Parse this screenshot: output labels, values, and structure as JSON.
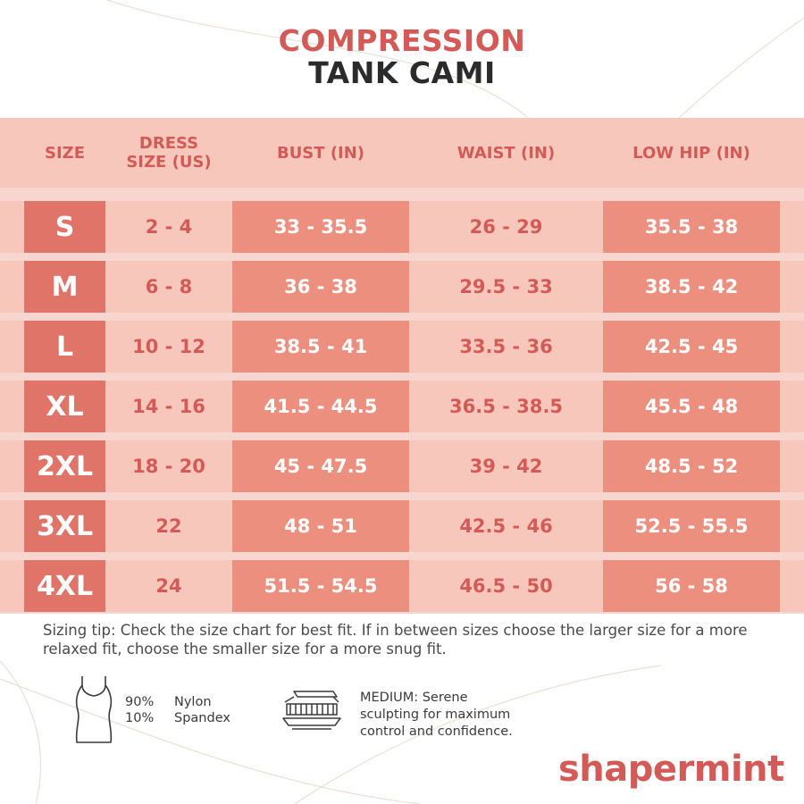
{
  "title": {
    "line1": "COMPRESSION",
    "line2": "TANK CAMI"
  },
  "table": {
    "headers": [
      "SIZE",
      "DRESS SIZE (US)",
      "BUST (IN)",
      "WAIST (IN)",
      "LOW HIP (IN)"
    ],
    "header_lines": {
      "size": "SIZE",
      "dress_1": "DRESS",
      "dress_2": "SIZE (US)",
      "bust": "BUST (IN)",
      "waist": "WAIST (IN)",
      "hip": "LOW HIP (IN)"
    },
    "rows": [
      {
        "size": "S",
        "dress": "2 - 4",
        "bust": "33 - 35.5",
        "waist": "26 - 29",
        "hip": "35.5 - 38"
      },
      {
        "size": "M",
        "dress": "6 - 8",
        "bust": "36 - 38",
        "waist": "29.5 - 33",
        "hip": "38.5 - 42"
      },
      {
        "size": "L",
        "dress": "10 - 12",
        "bust": "38.5 - 41",
        "waist": "33.5 - 36",
        "hip": "42.5 - 45"
      },
      {
        "size": "XL",
        "dress": "14 - 16",
        "bust": "41.5 - 44.5",
        "waist": "36.5 - 38.5",
        "hip": "45.5 - 48"
      },
      {
        "size": "2XL",
        "dress": "18 - 20",
        "bust": "45 - 47.5",
        "waist": "39 - 42",
        "hip": "48.5 - 52"
      },
      {
        "size": "3XL",
        "dress": "22",
        "bust": "48 - 51",
        "waist": "42.5 - 46",
        "hip": "52.5 - 55.5"
      },
      {
        "size": "4XL",
        "dress": "24",
        "bust": "51.5 - 54.5",
        "waist": "46.5 - 50",
        "hip": "56 - 58"
      }
    ]
  },
  "tip": {
    "line1": "Sizing tip: Check the size chart for best fit. If in between sizes choose the larger size for a more",
    "line2": "relaxed fit, choose the smaller size for a more snug fit."
  },
  "material": {
    "icon": "tank-top-icon",
    "pct1": "90%",
    "name1": "Nylon",
    "pct2": "10%",
    "name2": "Spandex"
  },
  "firmness": {
    "icon": "compression-layers-icon",
    "line1": "MEDIUM: Serene",
    "line2": "sculpting for maximum",
    "line3": "control and confidence."
  },
  "brand": {
    "logo_text": "shapermint"
  },
  "colors": {
    "accent": "#d35a57",
    "dark": "#2b2b2b",
    "table_light": "#f8c7bc",
    "table_mid": "#ec8f7f",
    "size_col": "#e07468"
  }
}
